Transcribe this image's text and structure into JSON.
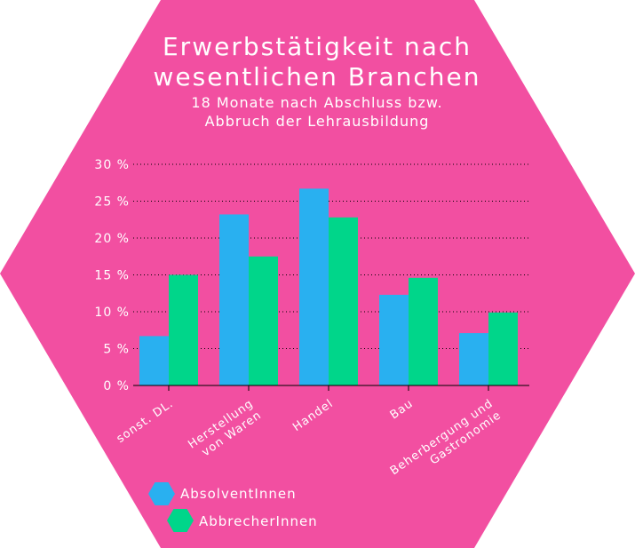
{
  "chart_data": {
    "type": "bar",
    "title_lines": [
      "Erwerbstätigkeit nach",
      "wesentlichen Branchen"
    ],
    "subtitle_lines": [
      "18 Monate nach Abschluss bzw.",
      "Abbruch der Lehrausbildung"
    ],
    "xlabel": "",
    "ylabel": "",
    "ylim": [
      0,
      30
    ],
    "yticks": [
      0,
      5,
      10,
      15,
      20,
      25,
      30
    ],
    "ytick_labels": [
      "0 %",
      "5 %",
      "10 %",
      "15 %",
      "20 %",
      "25 %",
      "30 %"
    ],
    "grid": true,
    "legend_position": "bottom-left",
    "categories": [
      [
        "sonst. DL."
      ],
      [
        "Herstellung",
        "von Waren"
      ],
      [
        "Handel"
      ],
      [
        "Bau"
      ],
      [
        "Beherbergung und",
        "Gastronomie"
      ]
    ],
    "series": [
      {
        "name": "AbsolventInnen",
        "color": "#29b0f0",
        "values": [
          6.7,
          23.2,
          26.7,
          12.3,
          7.1
        ]
      },
      {
        "name": "AbbrecherInnen",
        "color": "#00d68a",
        "values": [
          15.0,
          17.5,
          22.8,
          14.6,
          9.9
        ]
      }
    ],
    "background_color": "#f24fa1",
    "text_color": "#ffffff"
  }
}
